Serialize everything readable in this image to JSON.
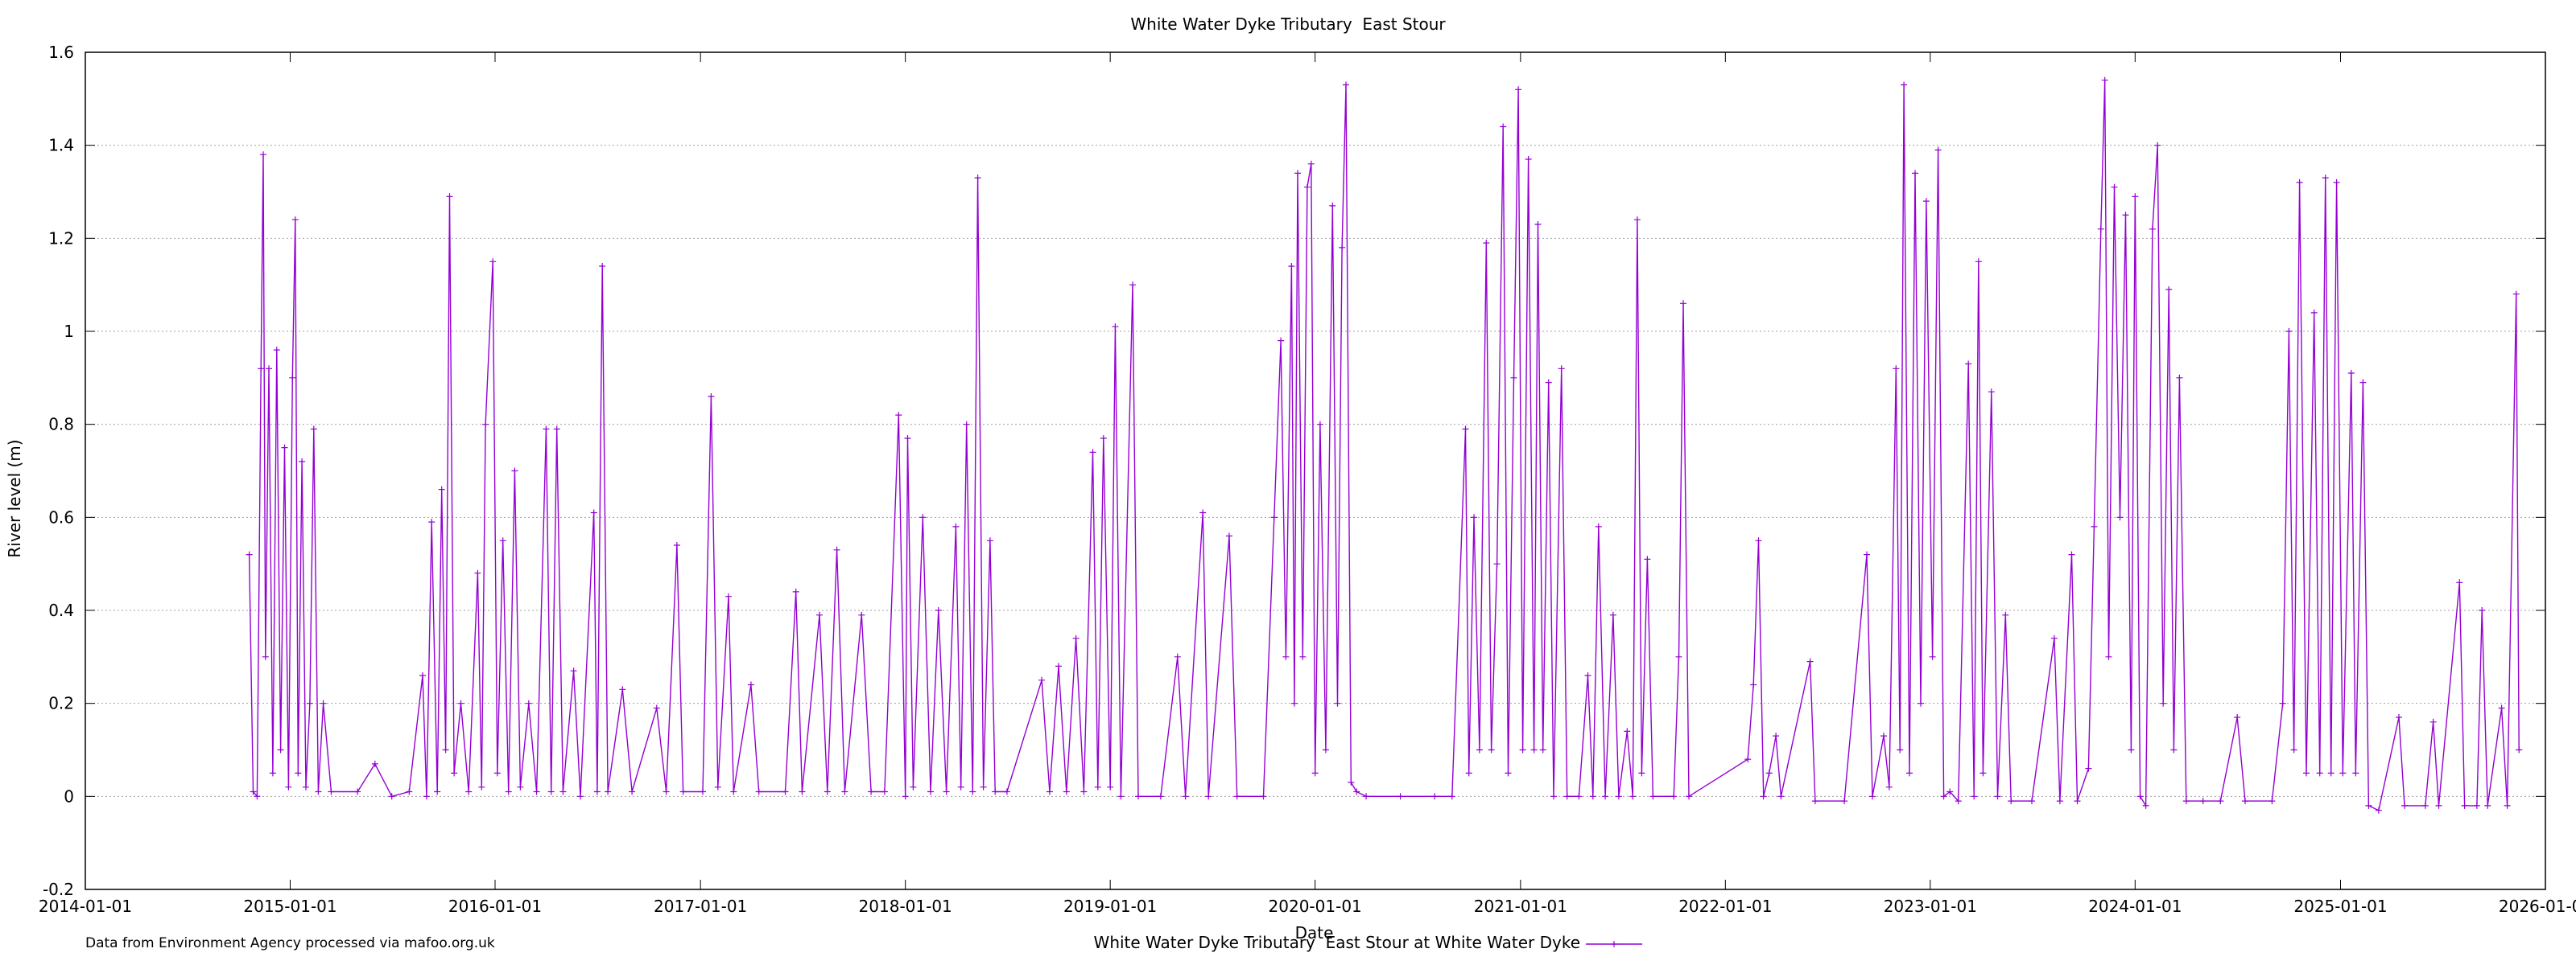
{
  "chart_data": {
    "type": "line",
    "title": "White Water Dyke Tributary  East Stour",
    "xlabel": "Date",
    "ylabel": "River level (m)",
    "footnote": "Data from Environment Agency processed via mafoo.org.uk",
    "xlim": [
      "2014-01-01",
      "2026-01-01"
    ],
    "ylim": [
      -0.2,
      1.6
    ],
    "x_ticks": [
      "2014-01-01",
      "2015-01-01",
      "2016-01-01",
      "2017-01-01",
      "2018-01-01",
      "2019-01-01",
      "2020-01-01",
      "2021-01-01",
      "2022-01-01",
      "2023-01-01",
      "2024-01-01",
      "2025-01-01",
      "2026-01-01"
    ],
    "y_ticks": [
      "-0.2",
      "0",
      "0.2",
      "0.4",
      "0.6",
      "0.8",
      "1",
      "1.2",
      "1.4",
      "1.6"
    ],
    "grid": true,
    "legend_position": "bottom-center",
    "series": [
      {
        "name": "White Water Dyke Tributary  East Stour at White Water Dyke",
        "color": "#9400d3",
        "marker": "plus",
        "points": [
          [
            "2014-10-20",
            0.52
          ],
          [
            "2014-10-27",
            0.01
          ],
          [
            "2014-11-03",
            0.0
          ],
          [
            "2014-11-10",
            0.92
          ],
          [
            "2014-11-14",
            1.38
          ],
          [
            "2014-11-18",
            0.3
          ],
          [
            "2014-11-24",
            0.92
          ],
          [
            "2014-12-01",
            0.05
          ],
          [
            "2014-12-08",
            0.96
          ],
          [
            "2014-12-15",
            0.1
          ],
          [
            "2014-12-22",
            0.75
          ],
          [
            "2014-12-29",
            0.02
          ],
          [
            "2015-01-05",
            0.9
          ],
          [
            "2015-01-10",
            1.24
          ],
          [
            "2015-01-15",
            0.05
          ],
          [
            "2015-01-22",
            0.72
          ],
          [
            "2015-01-29",
            0.02
          ],
          [
            "2015-02-05",
            0.2
          ],
          [
            "2015-02-12",
            0.79
          ],
          [
            "2015-02-20",
            0.01
          ],
          [
            "2015-03-01",
            0.2
          ],
          [
            "2015-03-15",
            0.01
          ],
          [
            "2015-05-01",
            0.01
          ],
          [
            "2015-06-01",
            0.07
          ],
          [
            "2015-07-01",
            0.0
          ],
          [
            "2015-08-01",
            0.01
          ],
          [
            "2015-08-25",
            0.26
          ],
          [
            "2015-09-01",
            0.0
          ],
          [
            "2015-09-10",
            0.59
          ],
          [
            "2015-09-20",
            0.01
          ],
          [
            "2015-09-28",
            0.66
          ],
          [
            "2015-10-05",
            0.1
          ],
          [
            "2015-10-12",
            1.29
          ],
          [
            "2015-10-20",
            0.05
          ],
          [
            "2015-11-01",
            0.2
          ],
          [
            "2015-11-15",
            0.01
          ],
          [
            "2015-12-01",
            0.48
          ],
          [
            "2015-12-08",
            0.02
          ],
          [
            "2015-12-15",
            0.8
          ],
          [
            "2015-12-28",
            1.15
          ],
          [
            "2016-01-05",
            0.05
          ],
          [
            "2016-01-15",
            0.55
          ],
          [
            "2016-01-25",
            0.01
          ],
          [
            "2016-02-05",
            0.7
          ],
          [
            "2016-02-15",
            0.02
          ],
          [
            "2016-03-01",
            0.2
          ],
          [
            "2016-03-15",
            0.01
          ],
          [
            "2016-04-01",
            0.79
          ],
          [
            "2016-04-10",
            0.01
          ],
          [
            "2016-04-20",
            0.79
          ],
          [
            "2016-05-01",
            0.01
          ],
          [
            "2016-05-20",
            0.27
          ],
          [
            "2016-06-01",
            0.0
          ],
          [
            "2016-06-25",
            0.61
          ],
          [
            "2016-07-01",
            0.01
          ],
          [
            "2016-07-10",
            1.14
          ],
          [
            "2016-07-20",
            0.01
          ],
          [
            "2016-08-15",
            0.23
          ],
          [
            "2016-09-01",
            0.01
          ],
          [
            "2016-10-15",
            0.19
          ],
          [
            "2016-11-01",
            0.01
          ],
          [
            "2016-11-20",
            0.54
          ],
          [
            "2016-12-01",
            0.01
          ],
          [
            "2017-01-05",
            0.01
          ],
          [
            "2017-01-20",
            0.86
          ],
          [
            "2017-02-01",
            0.02
          ],
          [
            "2017-02-20",
            0.43
          ],
          [
            "2017-03-01",
            0.01
          ],
          [
            "2017-04-01",
            0.24
          ],
          [
            "2017-04-15",
            0.01
          ],
          [
            "2017-06-01",
            0.01
          ],
          [
            "2017-06-20",
            0.44
          ],
          [
            "2017-07-01",
            0.01
          ],
          [
            "2017-08-01",
            0.39
          ],
          [
            "2017-08-15",
            0.01
          ],
          [
            "2017-09-01",
            0.53
          ],
          [
            "2017-09-15",
            0.01
          ],
          [
            "2017-10-15",
            0.39
          ],
          [
            "2017-11-01",
            0.01
          ],
          [
            "2017-11-25",
            0.01
          ],
          [
            "2017-12-20",
            0.82
          ],
          [
            "2018-01-01",
            0.0
          ],
          [
            "2018-01-05",
            0.77
          ],
          [
            "2018-01-15",
            0.02
          ],
          [
            "2018-02-01",
            0.6
          ],
          [
            "2018-02-15",
            0.01
          ],
          [
            "2018-03-01",
            0.4
          ],
          [
            "2018-03-15",
            0.01
          ],
          [
            "2018-04-01",
            0.58
          ],
          [
            "2018-04-10",
            0.02
          ],
          [
            "2018-04-20",
            0.8
          ],
          [
            "2018-05-01",
            0.01
          ],
          [
            "2018-05-10",
            1.33
          ],
          [
            "2018-05-20",
            0.02
          ],
          [
            "2018-06-01",
            0.55
          ],
          [
            "2018-06-10",
            0.01
          ],
          [
            "2018-07-01",
            0.01
          ],
          [
            "2018-09-01",
            0.25
          ],
          [
            "2018-09-15",
            0.01
          ],
          [
            "2018-10-01",
            0.28
          ],
          [
            "2018-10-15",
            0.01
          ],
          [
            "2018-11-01",
            0.34
          ],
          [
            "2018-11-15",
            0.01
          ],
          [
            "2018-12-01",
            0.74
          ],
          [
            "2018-12-10",
            0.02
          ],
          [
            "2018-12-20",
            0.77
          ],
          [
            "2019-01-01",
            0.02
          ],
          [
            "2019-01-10",
            1.01
          ],
          [
            "2019-01-20",
            0.0
          ],
          [
            "2019-02-10",
            1.1
          ],
          [
            "2019-02-20",
            0.0
          ],
          [
            "2019-04-01",
            0.0
          ],
          [
            "2019-05-01",
            0.3
          ],
          [
            "2019-05-15",
            0.0
          ],
          [
            "2019-06-15",
            0.61
          ],
          [
            "2019-06-25",
            0.0
          ],
          [
            "2019-08-01",
            0.56
          ],
          [
            "2019-08-15",
            0.0
          ],
          [
            "2019-10-01",
            0.0
          ],
          [
            "2019-10-20",
            0.6
          ],
          [
            "2019-11-01",
            0.98
          ],
          [
            "2019-11-10",
            0.3
          ],
          [
            "2019-11-20",
            1.14
          ],
          [
            "2019-11-25",
            0.2
          ],
          [
            "2019-12-01",
            1.34
          ],
          [
            "2019-12-10",
            0.3
          ],
          [
            "2019-12-18",
            1.31
          ],
          [
            "2019-12-25",
            1.36
          ],
          [
            "2020-01-01",
            0.05
          ],
          [
            "2020-01-10",
            0.8
          ],
          [
            "2020-01-20",
            0.1
          ],
          [
            "2020-02-01",
            1.27
          ],
          [
            "2020-02-10",
            0.2
          ],
          [
            "2020-02-18",
            1.18
          ],
          [
            "2020-02-25",
            1.53
          ],
          [
            "2020-03-05",
            0.03
          ],
          [
            "2020-03-15",
            0.01
          ],
          [
            "2020-04-01",
            0.0
          ],
          [
            "2020-06-01",
            0.0
          ],
          [
            "2020-08-01",
            0.0
          ],
          [
            "2020-09-01",
            0.0
          ],
          [
            "2020-09-25",
            0.79
          ],
          [
            "2020-10-01",
            0.05
          ],
          [
            "2020-10-10",
            0.6
          ],
          [
            "2020-10-20",
            0.1
          ],
          [
            "2020-11-01",
            1.19
          ],
          [
            "2020-11-10",
            0.1
          ],
          [
            "2020-11-20",
            0.5
          ],
          [
            "2020-12-01",
            1.44
          ],
          [
            "2020-12-10",
            0.05
          ],
          [
            "2020-12-20",
            0.9
          ],
          [
            "2020-12-28",
            1.52
          ],
          [
            "2021-01-05",
            0.1
          ],
          [
            "2021-01-15",
            1.37
          ],
          [
            "2021-01-25",
            0.1
          ],
          [
            "2021-02-01",
            1.23
          ],
          [
            "2021-02-10",
            0.1
          ],
          [
            "2021-02-20",
            0.89
          ],
          [
            "2021-03-01",
            0.0
          ],
          [
            "2021-03-15",
            0.92
          ],
          [
            "2021-03-25",
            0.0
          ],
          [
            "2021-04-15",
            0.0
          ],
          [
            "2021-05-01",
            0.26
          ],
          [
            "2021-05-10",
            0.0
          ],
          [
            "2021-05-20",
            0.58
          ],
          [
            "2021-06-01",
            0.0
          ],
          [
            "2021-06-15",
            0.39
          ],
          [
            "2021-06-25",
            0.0
          ],
          [
            "2021-07-10",
            0.14
          ],
          [
            "2021-07-20",
            0.0
          ],
          [
            "2021-07-28",
            1.24
          ],
          [
            "2021-08-05",
            0.05
          ],
          [
            "2021-08-15",
            0.51
          ],
          [
            "2021-08-25",
            0.0
          ],
          [
            "2021-10-01",
            0.0
          ],
          [
            "2021-10-10",
            0.3
          ],
          [
            "2021-10-18",
            1.06
          ],
          [
            "2021-10-28",
            0.0
          ],
          [
            "2022-02-10",
            0.08
          ],
          [
            "2022-02-20",
            0.24
          ],
          [
            "2022-03-01",
            0.55
          ],
          [
            "2022-03-10",
            0.0
          ],
          [
            "2022-03-20",
            0.05
          ],
          [
            "2022-04-01",
            0.13
          ],
          [
            "2022-04-10",
            0.0
          ],
          [
            "2022-06-01",
            0.29
          ],
          [
            "2022-06-10",
            -0.01
          ],
          [
            "2022-08-01",
            -0.01
          ],
          [
            "2022-09-10",
            0.52
          ],
          [
            "2022-09-20",
            0.0
          ],
          [
            "2022-10-10",
            0.13
          ],
          [
            "2022-10-20",
            0.02
          ],
          [
            "2022-11-01",
            0.92
          ],
          [
            "2022-11-08",
            0.1
          ],
          [
            "2022-11-15",
            1.53
          ],
          [
            "2022-11-25",
            0.05
          ],
          [
            "2022-12-05",
            1.34
          ],
          [
            "2022-12-15",
            0.2
          ],
          [
            "2022-12-25",
            1.28
          ],
          [
            "2023-01-05",
            0.3
          ],
          [
            "2023-01-15",
            1.39
          ],
          [
            "2023-01-25",
            0.0
          ],
          [
            "2023-02-05",
            0.01
          ],
          [
            "2023-02-20",
            -0.01
          ],
          [
            "2023-03-10",
            0.93
          ],
          [
            "2023-03-20",
            0.0
          ],
          [
            "2023-03-28",
            1.15
          ],
          [
            "2023-04-05",
            0.05
          ],
          [
            "2023-04-20",
            0.87
          ],
          [
            "2023-05-01",
            0.0
          ],
          [
            "2023-05-15",
            0.39
          ],
          [
            "2023-05-25",
            -0.01
          ],
          [
            "2023-07-01",
            -0.01
          ],
          [
            "2023-08-10",
            0.34
          ],
          [
            "2023-08-20",
            -0.01
          ],
          [
            "2023-09-10",
            0.52
          ],
          [
            "2023-09-20",
            -0.01
          ],
          [
            "2023-10-10",
            0.06
          ],
          [
            "2023-10-20",
            0.58
          ],
          [
            "2023-11-01",
            1.22
          ],
          [
            "2023-11-08",
            1.54
          ],
          [
            "2023-11-15",
            0.3
          ],
          [
            "2023-11-25",
            1.31
          ],
          [
            "2023-12-05",
            0.6
          ],
          [
            "2023-12-15",
            1.25
          ],
          [
            "2023-12-25",
            0.1
          ],
          [
            "2024-01-01",
            1.29
          ],
          [
            "2024-01-10",
            0.0
          ],
          [
            "2024-01-20",
            -0.02
          ],
          [
            "2024-02-01",
            1.22
          ],
          [
            "2024-02-10",
            1.4
          ],
          [
            "2024-02-20",
            0.2
          ],
          [
            "2024-03-01",
            1.09
          ],
          [
            "2024-03-10",
            0.1
          ],
          [
            "2024-03-20",
            0.9
          ],
          [
            "2024-04-01",
            -0.01
          ],
          [
            "2024-05-01",
            -0.01
          ],
          [
            "2024-06-01",
            -0.01
          ],
          [
            "2024-07-01",
            0.17
          ],
          [
            "2024-07-15",
            -0.01
          ],
          [
            "2024-09-01",
            -0.01
          ],
          [
            "2024-09-20",
            0.2
          ],
          [
            "2024-10-01",
            1.0
          ],
          [
            "2024-10-10",
            0.1
          ],
          [
            "2024-10-20",
            1.32
          ],
          [
            "2024-11-01",
            0.05
          ],
          [
            "2024-11-15",
            1.04
          ],
          [
            "2024-11-25",
            0.05
          ],
          [
            "2024-12-05",
            1.33
          ],
          [
            "2024-12-15",
            0.05
          ],
          [
            "2024-12-25",
            1.32
          ],
          [
            "2025-01-05",
            0.05
          ],
          [
            "2025-01-20",
            0.91
          ],
          [
            "2025-01-28",
            0.05
          ],
          [
            "2025-02-10",
            0.89
          ],
          [
            "2025-02-20",
            -0.02
          ],
          [
            "2025-03-10",
            -0.03
          ],
          [
            "2025-04-15",
            0.17
          ],
          [
            "2025-04-25",
            -0.02
          ],
          [
            "2025-06-01",
            -0.02
          ],
          [
            "2025-06-15",
            0.16
          ],
          [
            "2025-06-25",
            -0.02
          ],
          [
            "2025-08-01",
            0.46
          ],
          [
            "2025-08-10",
            -0.02
          ],
          [
            "2025-09-01",
            -0.02
          ],
          [
            "2025-09-10",
            0.4
          ],
          [
            "2025-09-20",
            -0.02
          ],
          [
            "2025-10-15",
            0.19
          ],
          [
            "2025-10-25",
            -0.02
          ],
          [
            "2025-11-10",
            1.08
          ],
          [
            "2025-11-15",
            0.1
          ]
        ]
      }
    ]
  }
}
